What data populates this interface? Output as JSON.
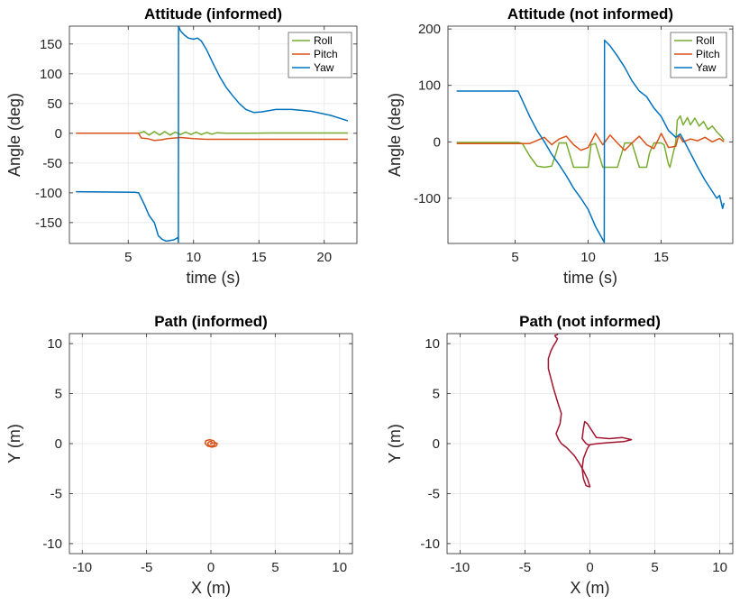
{
  "colors": {
    "roll": "#77AC30",
    "pitch": "#D95319",
    "yaw": "#0072BD",
    "path": "#A2142F",
    "grid": "#ebebeb",
    "axis": "#262626"
  },
  "chart_data": [
    {
      "type": "line",
      "title": "Attitude (informed)",
      "xlabel": "time (s)",
      "ylabel": "Angle (deg)",
      "xlim": [
        0.5,
        22.5
      ],
      "ylim": [
        -185,
        180
      ],
      "xticks": [
        5,
        10,
        15,
        20
      ],
      "yticks": [
        -150,
        -100,
        -50,
        0,
        50,
        100,
        150
      ],
      "grid": true,
      "legend": "top-right",
      "series": [
        {
          "name": "Roll",
          "color": "#77AC30",
          "x": [
            1,
            5.8,
            6.2,
            6.6,
            7,
            7.4,
            7.8,
            8.2,
            8.6,
            9,
            9.4,
            9.8,
            10.2,
            10.6,
            11,
            11.4,
            11.8,
            12.5,
            14,
            16,
            18,
            20,
            21.8
          ],
          "y": [
            0,
            0,
            3,
            -3,
            3,
            -3,
            3,
            -3,
            2,
            -2,
            2,
            -2,
            2,
            -2,
            1.5,
            -1.5,
            1,
            0,
            0,
            0.5,
            0.5,
            0.5,
            0.5
          ]
        },
        {
          "name": "Pitch",
          "color": "#D95319",
          "x": [
            1,
            5.8,
            6,
            6.5,
            7,
            7.5,
            8,
            8.5,
            9,
            10,
            11,
            12,
            14,
            16,
            18,
            21.8
          ],
          "y": [
            0,
            0,
            -8,
            -9,
            -12,
            -11,
            -9,
            -8,
            -7,
            -9,
            -10,
            -10,
            -10,
            -10,
            -10,
            -10
          ]
        },
        {
          "name": "Yaw",
          "color": "#0072BD",
          "x": [
            1,
            5.5,
            5.8,
            6.2,
            6.6,
            7,
            7.3,
            7.6,
            7.9,
            8.2,
            8.5,
            8.8,
            8.84,
            8.85,
            9.0,
            9.3,
            9.6,
            10.0,
            10.3,
            10.6,
            11.0,
            11.5,
            12.0,
            12.5,
            13.0,
            13.5,
            14.0,
            14.6,
            15.2,
            16.3,
            17.5,
            19.0,
            20.5,
            21.8
          ],
          "y": [
            -98,
            -99,
            -100,
            -118,
            -138,
            -150,
            -172,
            -178,
            -181,
            -180,
            -179,
            -175,
            -183,
            180,
            172,
            165,
            160,
            158,
            160,
            155,
            140,
            117,
            95,
            77,
            63,
            50,
            40,
            35,
            36,
            40,
            40,
            37,
            30,
            21
          ]
        }
      ]
    },
    {
      "type": "line",
      "title": "Attitude (not informed)",
      "xlabel": "time (s)",
      "ylabel": "Angle (deg)",
      "xlim": [
        0.4,
        19.9
      ],
      "ylim": [
        -180,
        205
      ],
      "xticks": [
        5,
        10,
        15
      ],
      "yticks": [
        -100,
        0,
        100,
        200
      ],
      "grid": true,
      "legend": "top-right",
      "series": [
        {
          "name": "Roll",
          "color": "#77AC30",
          "x": [
            1,
            5.2,
            5.5,
            6,
            6.5,
            7,
            7.5,
            7.8,
            8,
            8.5,
            9,
            9.5,
            10,
            10.2,
            10.5,
            11,
            11.5,
            12,
            12.3,
            12.5,
            13,
            13.5,
            14,
            14.2,
            14.5,
            15,
            15.2,
            15.5,
            15.6,
            16,
            16.1,
            16.3,
            16.5,
            16.8,
            17,
            17.3,
            17.6,
            17.9,
            18.2,
            18.5,
            18.8,
            19.1,
            19.3
          ],
          "y": [
            -1,
            -1,
            -3,
            -25,
            -43,
            -45,
            -43,
            -20,
            -2,
            -2,
            -45,
            -45,
            -45,
            -5,
            -3,
            -45,
            -45,
            -45,
            -20,
            -2,
            -2,
            -45,
            -45,
            -20,
            -2,
            -2,
            -5,
            -40,
            -45,
            0,
            38,
            46,
            30,
            43,
            30,
            42,
            28,
            36,
            22,
            28,
            18,
            10,
            3
          ]
        },
        {
          "name": "Pitch",
          "color": "#D95319",
          "x": [
            1,
            5,
            6,
            7,
            7.5,
            8,
            8.5,
            9,
            9.5,
            10,
            10.5,
            11,
            11.5,
            12,
            12.5,
            13,
            13.5,
            14,
            14.5,
            15,
            15.5,
            16,
            16.2,
            16.5,
            17,
            17.5,
            18,
            18.5,
            19,
            19.3
          ],
          "y": [
            -3,
            -3,
            -3,
            8,
            -5,
            5,
            10,
            -5,
            -15,
            -10,
            15,
            -5,
            12,
            -2,
            -15,
            -2,
            10,
            -5,
            -12,
            15,
            -10,
            -8,
            12,
            0,
            5,
            2,
            8,
            0,
            6,
            0
          ]
        },
        {
          "name": "Yaw",
          "color": "#0072BD",
          "x": [
            1,
            5.2,
            6,
            6.5,
            7,
            7.5,
            8,
            8.5,
            9,
            9.5,
            10,
            10.5,
            11.1,
            11.12,
            11.5,
            12,
            12.5,
            13,
            13.5,
            14,
            14.5,
            15,
            15.5,
            16,
            16.3,
            16.5,
            17,
            17.5,
            18,
            18.5,
            18.8,
            19,
            19.2,
            19.3
          ],
          "y": [
            90,
            90,
            45,
            20,
            0,
            -22,
            -40,
            -60,
            -82,
            -100,
            -120,
            -150,
            -178,
            180,
            170,
            152,
            132,
            108,
            90,
            80,
            60,
            45,
            20,
            8,
            14,
            5,
            -20,
            -45,
            -68,
            -88,
            -100,
            -95,
            -118,
            -108
          ]
        }
      ]
    },
    {
      "type": "line",
      "title": "Path (informed)",
      "xlabel": "X (m)",
      "ylabel": "Y (m)",
      "xlim": [
        -11,
        11
      ],
      "ylim": [
        -11,
        11
      ],
      "xticks": [
        -10,
        -5,
        0,
        5,
        10
      ],
      "yticks": [
        -10,
        -5,
        0,
        5,
        10
      ],
      "grid": true,
      "series": [
        {
          "name": "Path",
          "color": "#D95319",
          "x": [
            0,
            0.35,
            0.5,
            0.4,
            0.1,
            -0.25,
            -0.45,
            -0.4,
            -0.1,
            0.2,
            0.35,
            0.25,
            0,
            -0.2,
            -0.25,
            -0.1,
            0.05,
            0.1,
            0,
            -0.05
          ],
          "y": [
            0,
            0.1,
            0,
            -0.25,
            -0.35,
            -0.25,
            0,
            0.28,
            0.4,
            0.3,
            0.05,
            -0.18,
            -0.25,
            -0.15,
            0.05,
            0.22,
            0.2,
            0.05,
            -0.05,
            0.05
          ]
        }
      ]
    },
    {
      "type": "line",
      "title": "Path (not informed)",
      "xlabel": "X (m)",
      "ylabel": "Y (m)",
      "xlim": [
        -11,
        11
      ],
      "ylim": [
        -11,
        11
      ],
      "xticks": [
        -10,
        -5,
        0,
        5,
        10
      ],
      "yticks": [
        -10,
        -5,
        0,
        5,
        10
      ],
      "grid": true,
      "series": [
        {
          "name": "Path",
          "color": "#A2142F",
          "x": [
            0,
            -0.3,
            -0.6,
            -0.5,
            -0.4,
            -0.2,
            0.5,
            1.5,
            2.5,
            3.2,
            2.6,
            1.5,
            0.6,
            0,
            -0.2,
            -0.5,
            -0.6,
            -0.5,
            -0.3,
            -0.1,
            0,
            -0.2,
            -0.5,
            -0.8,
            -1.2,
            -1.8,
            -2.2,
            -2.4,
            -2.6,
            -2.3,
            -2.2,
            -2.5,
            -2.8,
            -3,
            -3.2,
            -3.2,
            -3.0,
            -2.8,
            -2.6,
            -2.5,
            -2.6,
            -2.7,
            -2.5,
            -2.5
          ],
          "y": [
            -0.2,
            0,
            0.5,
            1.5,
            2.2,
            2,
            0.6,
            0.5,
            0.6,
            0.4,
            0.2,
            0.1,
            0,
            -0.1,
            -0.5,
            -1.5,
            -2.5,
            -3.5,
            -4.2,
            -4.3,
            -4.3,
            -3.5,
            -2.7,
            -2,
            -1.2,
            -0.4,
            0,
            0.4,
            1,
            2,
            3,
            4.2,
            5.5,
            6.5,
            7.5,
            8.5,
            9.3,
            9.8,
            10.2,
            10.5,
            10.6,
            10.8,
            10.9,
            11
          ]
        }
      ]
    }
  ]
}
